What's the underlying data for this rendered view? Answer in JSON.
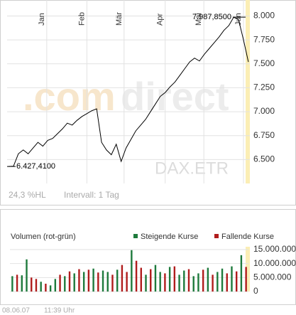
{
  "chart_data": [
    {
      "type": "line",
      "watermark": [
        ".com",
        "direct"
      ],
      "instrument": "DAX.ETR",
      "color": "#000000",
      "values": [
        6427.41,
        6430,
        6560,
        6600,
        6560,
        6620,
        6680,
        6640,
        6700,
        6720,
        6770,
        6820,
        6880,
        6860,
        6910,
        6950,
        6980,
        7010,
        7030,
        6680,
        6600,
        6550,
        6660,
        6480,
        6620,
        6710,
        6800,
        6860,
        6920,
        7000,
        7080,
        7160,
        7200,
        7260,
        7310,
        7380,
        7450,
        7520,
        7560,
        7530,
        7600,
        7660,
        7720,
        7780,
        7850,
        7900,
        7987.85,
        7960,
        7750,
        7520
      ],
      "xlim": [
        -0.3,
        49.3
      ],
      "xticks": [
        {
          "value": 7.8,
          "label": "Jan"
        },
        {
          "value": 16,
          "label": "Feb"
        },
        {
          "value": 23.6,
          "label": "Mär"
        },
        {
          "value": 32,
          "label": "Apr"
        },
        {
          "value": 39.9,
          "label": "Mai"
        },
        {
          "value": 48,
          "label": "Jun"
        }
      ],
      "ylim": [
        6250,
        8130
      ],
      "yticks": [
        {
          "value": 6500,
          "label": "6.500"
        },
        {
          "value": 6750,
          "label": "6.750"
        },
        {
          "value": 7000,
          "label": "7.000"
        },
        {
          "value": 7250,
          "label": "7.250"
        },
        {
          "value": 7500,
          "label": "7.500"
        },
        {
          "value": 7750,
          "label": "7.750"
        },
        {
          "value": 8000,
          "label": "8.000"
        }
      ],
      "grid": true,
      "annotations": [
        {
          "text": "7.987,8500",
          "value": 7987.85
        },
        {
          "text": "6.427,4100",
          "value": 6427.41
        }
      ],
      "range_label": "24,3 %HL",
      "interval_label": "Intervall: 1 Tag"
    },
    {
      "type": "bar",
      "title": "Volumen (rot-grün)",
      "series": [
        {
          "name": "Steigende Kurse",
          "color": "#1e7a3c",
          "values": [
            5500000,
            null,
            5800000,
            11500000,
            null,
            null,
            3500000,
            null,
            2200000,
            4500000,
            null,
            5500000,
            null,
            6500000,
            null,
            7000000,
            null,
            8200000,
            null,
            7500000,
            7000000,
            null,
            7800000,
            null,
            null,
            14800000,
            null,
            null,
            6000000,
            null,
            9500000,
            7000000,
            null,
            8800000,
            null,
            6000000,
            7500000,
            null,
            5500000,
            6500000,
            null,
            8500000,
            null,
            7000000,
            8200000,
            null,
            9000000,
            null,
            13000000,
            null
          ]
        },
        {
          "name": "Fallende Kurse",
          "color": "#b01c1c",
          "values": [
            null,
            6000000,
            null,
            null,
            5000000,
            4500000,
            null,
            2800000,
            null,
            null,
            6000000,
            null,
            7200000,
            null,
            8000000,
            null,
            7800000,
            null,
            6800000,
            null,
            null,
            6000000,
            null,
            9500000,
            7000000,
            null,
            11000000,
            8500000,
            null,
            8000000,
            null,
            null,
            6500000,
            null,
            9000000,
            null,
            null,
            8000000,
            null,
            null,
            7800000,
            null,
            6000000,
            null,
            null,
            6500000,
            null,
            7200000,
            null,
            8800000
          ]
        }
      ],
      "ylim": [
        0,
        16000000
      ],
      "yticks": [
        0,
        {
          "value": 5000000,
          "label": "5.000.000"
        },
        {
          "value": 10000000,
          "label": "10.000.000"
        },
        {
          "value": 15000000,
          "label": "15.000.000"
        }
      ]
    }
  ],
  "footer": {
    "date": "08.06.07",
    "time": "11:39 Uhr"
  }
}
